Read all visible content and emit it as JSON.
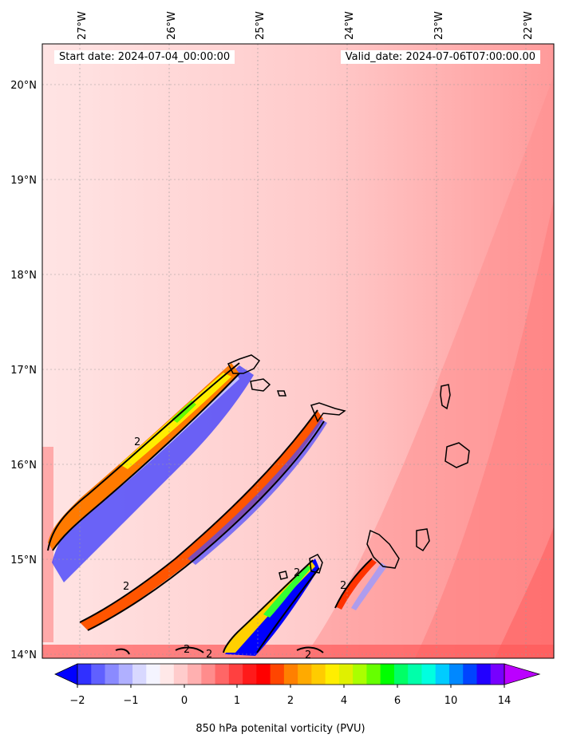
{
  "header": {
    "start_date": "Start date: 2024-07-04_00:00:00",
    "valid_date": "Valid_date: 2024-07-06T07:00:00.00"
  },
  "map": {
    "lon_labels": [
      "27°W",
      "26°W",
      "25°W",
      "24°W",
      "23°W",
      "22°W"
    ],
    "lat_labels": [
      "20°N",
      "19°N",
      "18°N",
      "17°N",
      "16°N",
      "15°N",
      "14°N"
    ],
    "contour_label": "2",
    "background_color": "#ffd6d6"
  },
  "colorbar": {
    "label": "850 hPa potenital vorticity (PVU)",
    "tick_labels": [
      "−2",
      "−1",
      "0",
      "1",
      "2",
      "4",
      "6",
      "10",
      "14"
    ],
    "colors": [
      "#0000ff",
      "#3030ff",
      "#6060ff",
      "#8a8aff",
      "#b0b0ff",
      "#d8d8ff",
      "#f4f4ff",
      "#ffe8e8",
      "#ffcccc",
      "#ffb0b0",
      "#ff8c8c",
      "#ff6666",
      "#ff4040",
      "#ff1a1a",
      "#ff0000",
      "#ff4500",
      "#ff8000",
      "#ffaa00",
      "#ffcc00",
      "#ffee00",
      "#e0f000",
      "#aaff00",
      "#66ff00",
      "#00ff00",
      "#00ff66",
      "#00ffaa",
      "#00ffe0",
      "#00ccff",
      "#0088ff",
      "#0044ff",
      "#2200ff",
      "#7700ff",
      "#bb00ff"
    ]
  }
}
